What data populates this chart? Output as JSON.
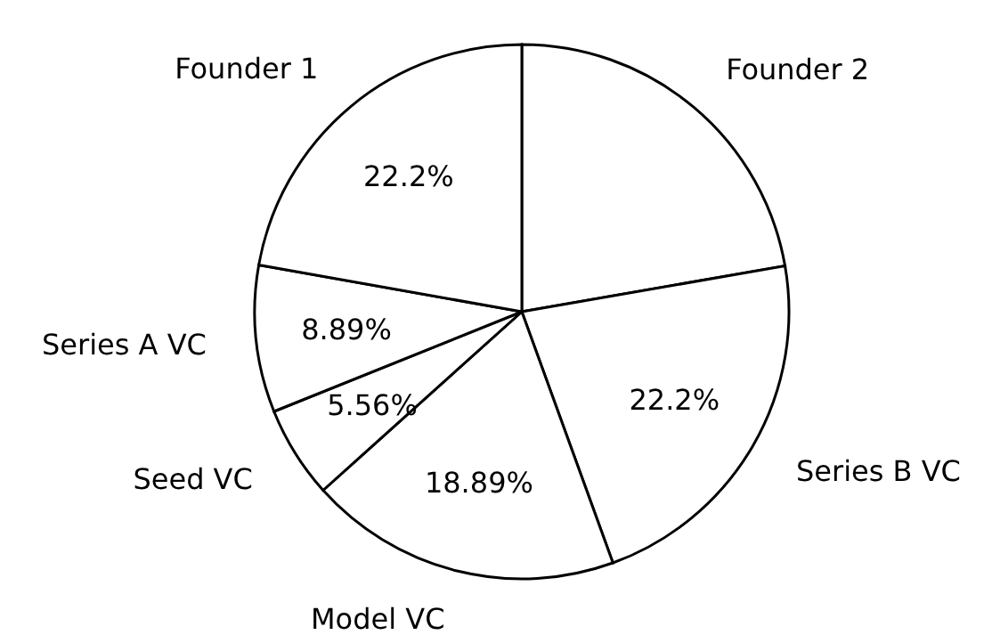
{
  "chart_data": {
    "type": "pie",
    "categories": [
      "Founder 2",
      "Series B VC",
      "Model VC",
      "Seed VC",
      "Series A VC",
      "Founder 1"
    ],
    "values": [
      22.26,
      22.2,
      18.89,
      5.56,
      8.89,
      22.2
    ],
    "colors": [
      "#ffffff",
      "#ffffff",
      "#ffffff",
      "#ffffff",
      "#ffffff",
      "#ffffff"
    ],
    "value_labels": [
      null,
      "22.2%",
      "18.89%",
      "5.56%",
      "8.89%",
      "22.2%"
    ]
  }
}
